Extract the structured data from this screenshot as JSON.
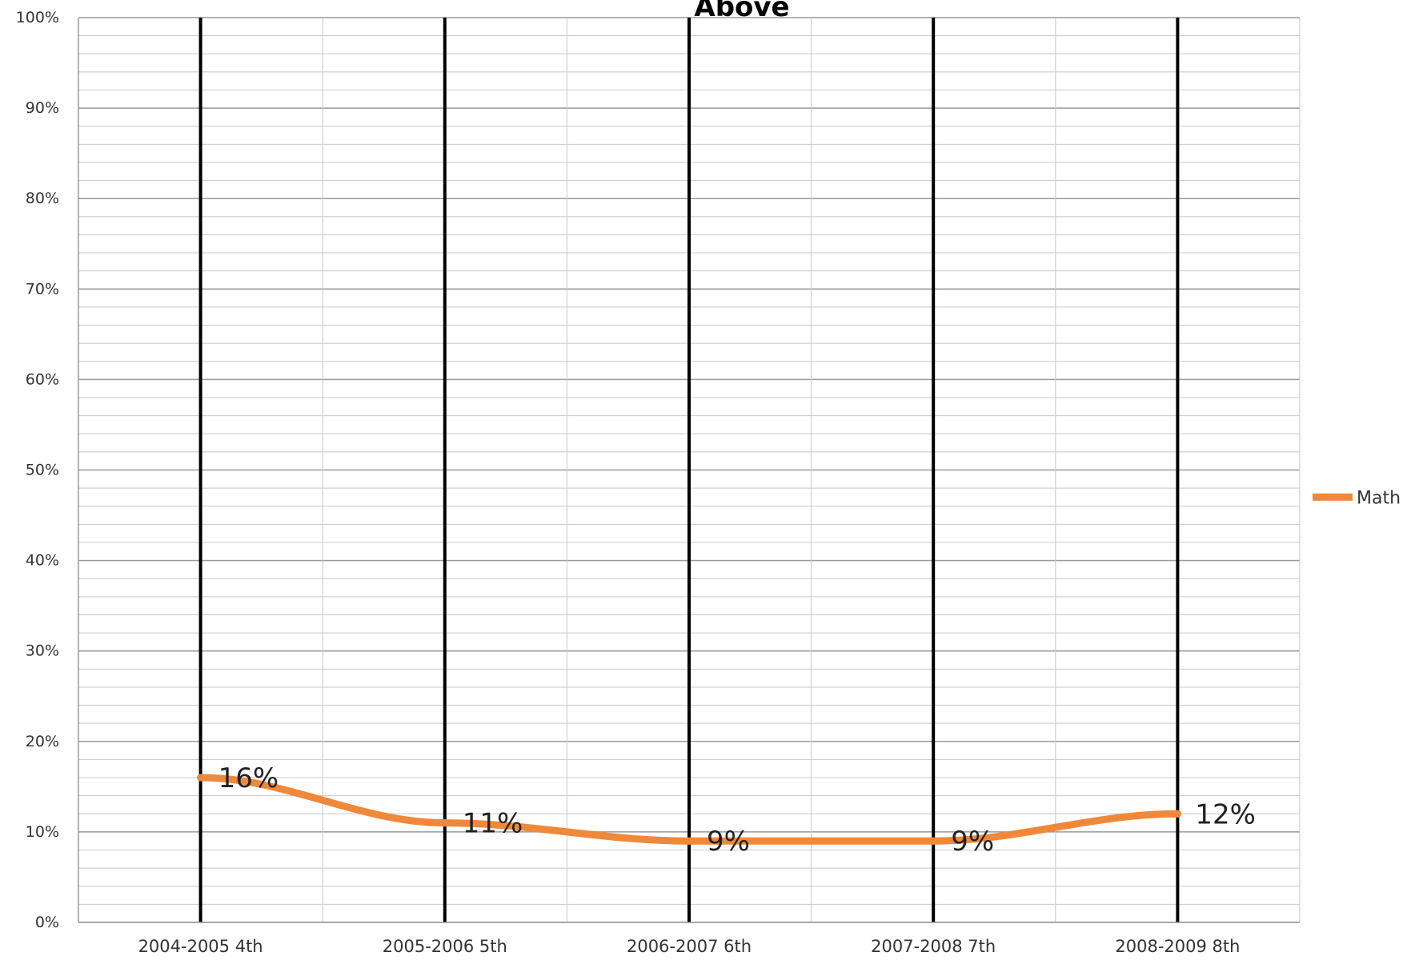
{
  "chart_data": {
    "type": "line",
    "title": "Above",
    "xlabel": "",
    "ylabel": "",
    "categories": [
      "2004-2005 4th",
      "2005-2006 5th",
      "2006-2007 6th",
      "2007-2008 7th",
      "2008-2009 8th"
    ],
    "series": [
      {
        "name": "Math",
        "values": [
          16,
          11,
          9,
          9,
          12
        ],
        "data_labels": [
          "16%",
          "11%",
          "9%",
          "9%",
          "12%"
        ],
        "color": "#f0883a"
      }
    ],
    "ylim": [
      0,
      100
    ],
    "y_ticks": [
      0,
      10,
      20,
      30,
      40,
      50,
      60,
      70,
      80,
      90,
      100
    ],
    "y_tick_labels": [
      "0%",
      "10%",
      "20%",
      "30%",
      "40%",
      "50%",
      "60%",
      "70%",
      "80%",
      "90%",
      "100%"
    ],
    "grid": true,
    "legend_position": "right",
    "colors": {
      "series": "#f0883a",
      "major_grid": "#9a9a9a",
      "minor_grid": "#c8c8c8",
      "category_lines": "#000000",
      "text": "#333333"
    }
  }
}
